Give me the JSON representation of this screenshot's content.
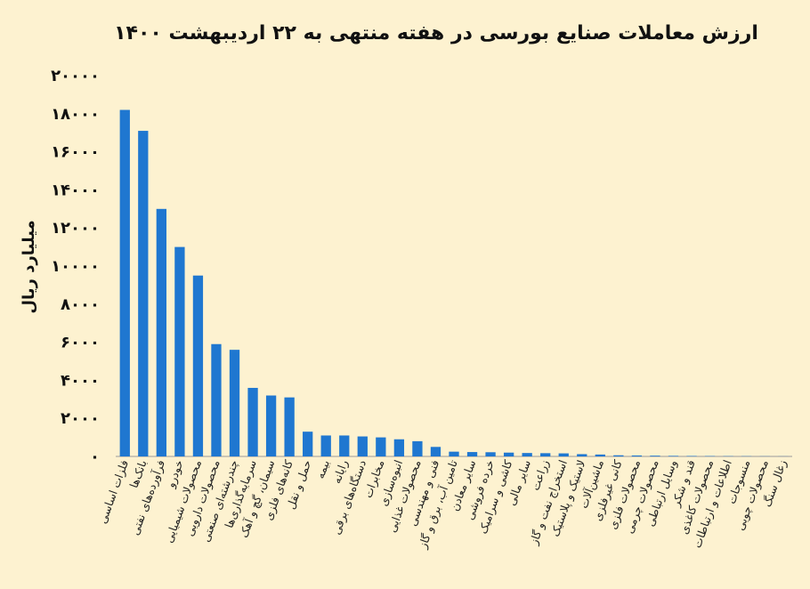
{
  "chart_data": {
    "type": "bar",
    "title": "ارزش معاملات صنایع بورسی در هفته منتهی به ۲۲ اردیبهشت ۱۴۰۰",
    "xlabel": "",
    "ylabel": "میلیارد ریال",
    "ylim": [
      0,
      20000
    ],
    "yticks": [
      0,
      2000,
      4000,
      6000,
      8000,
      10000,
      12000,
      14000,
      16000,
      18000,
      20000
    ],
    "ytick_labels": [
      "۰",
      "۲۰۰۰",
      "۴۰۰۰",
      "۶۰۰۰",
      "۸۰۰۰",
      "۱۰۰۰۰",
      "۱۲۰۰۰",
      "۱۴۰۰۰",
      "۱۶۰۰۰",
      "۱۸۰۰۰",
      "۲۰۰۰۰"
    ],
    "grid": false,
    "bar_color": "#1f77d0",
    "categories": [
      "فلزات اساسی",
      "بانک‌ها",
      "فرآورده‌های نفتی",
      "خودرو",
      "محصولات شیمیایی",
      "محصولات دارویی",
      "چندرشته‌ای صنعتی",
      "سرمایه‌گذاری‌ها",
      "سیمان، گچ و آهک",
      "کانه‌های فلزی",
      "حمل و نقل",
      "بیمه",
      "رایانه",
      "دستگاه‌های برقی",
      "مخابرات",
      "انبوه‌سازی",
      "محصولات غذایی",
      "فنی و مهندسی",
      "تامین آب، برق و گاز",
      "سایر معادن",
      "خرده فروشی",
      "کاشی و سرامیک",
      "سایر مالی",
      "زراعت",
      "استخراج نفت و گاز",
      "لاستیک و پلاستیک",
      "ماشین‌آلات",
      "کانی غیرفلزی",
      "محصولات فلزی",
      "محصولات چرمی",
      "وسایل ارتباطی",
      "قند و شکر",
      "محصولات کاغذی",
      "اطلاعات و ارتباطات",
      "منسوجات",
      "محصولات چوبی",
      "زغال سنگ"
    ],
    "values": [
      18200,
      17100,
      13000,
      11000,
      9500,
      5900,
      5600,
      3600,
      3200,
      3100,
      1300,
      1100,
      1100,
      1050,
      1000,
      900,
      800,
      500,
      250,
      230,
      220,
      200,
      180,
      170,
      160,
      120,
      100,
      60,
      50,
      40,
      30,
      25,
      20,
      15,
      12,
      8,
      5
    ]
  }
}
